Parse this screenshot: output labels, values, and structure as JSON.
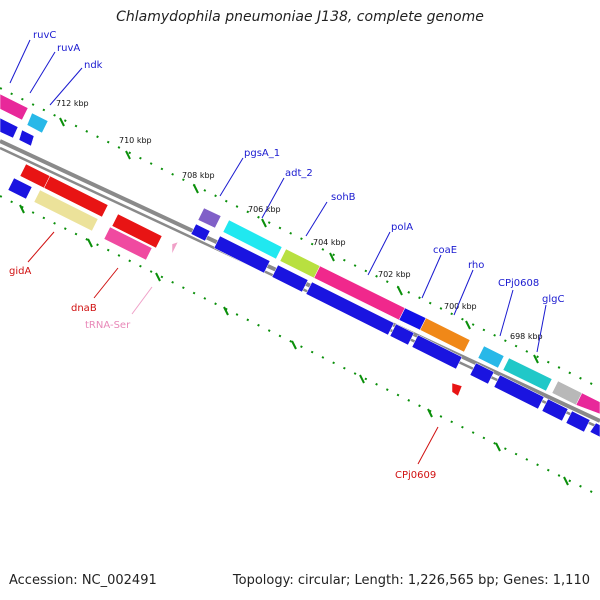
{
  "title": "Chlamydophila pneumoniae J138, complete genome",
  "footer": {
    "accession": "Accession: NC_002491",
    "topology": "Topology: circular; Length: 1,226,565 bp; Genes: 1,110"
  },
  "colors": {
    "backbone": "#7a7a7a",
    "ticks": "#0a8f0a",
    "forward_label": "#1a1ad0",
    "reverse_label": "#d01010",
    "trna_label": "#e888b8"
  },
  "ticks_kbp": [
    "712 kbp",
    "710 kbp",
    "708 kbp",
    "706 kbp",
    "704 kbp",
    "702 kbp",
    "700 kbp",
    "698 kbp"
  ],
  "forward_genes": [
    "ruvC",
    "ruvA",
    "ndk",
    "pgsA_1",
    "adt_2",
    "sohB",
    "polA",
    "coaE",
    "rho",
    "CPj0608",
    "glgC"
  ],
  "reverse_genes": [
    "gidA",
    "dnaB",
    "CPj0609"
  ],
  "rna_genes": [
    "tRNA-Ser"
  ]
}
